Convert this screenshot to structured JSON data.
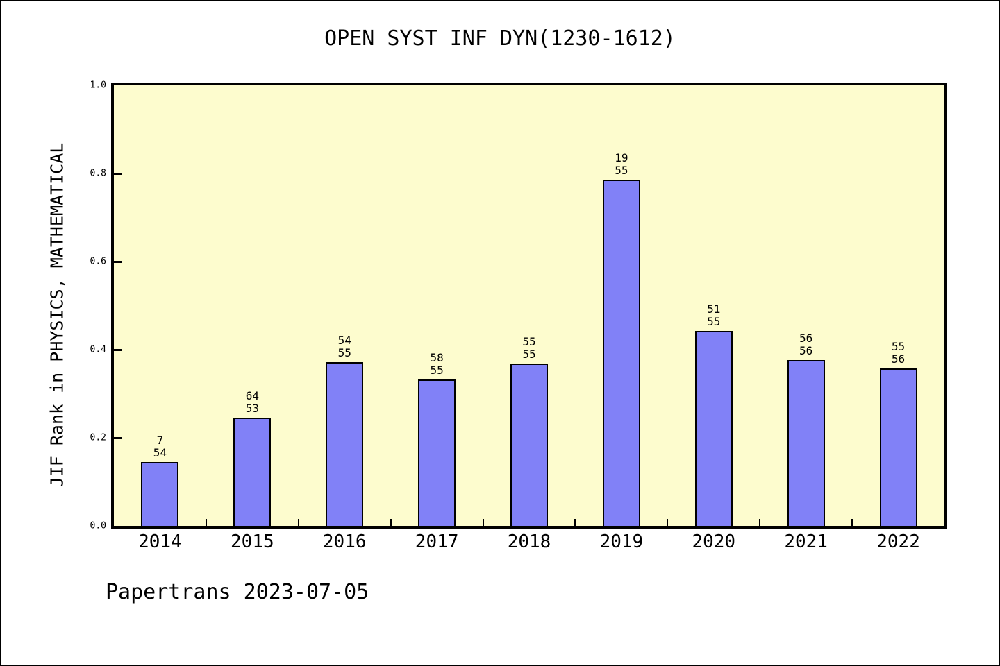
{
  "header": {
    "title": "OPEN SYST INF DYN(1230-1612)"
  },
  "footer": {
    "text": "Papertrans 2023-07-05"
  },
  "chart_data": {
    "type": "bar",
    "title": "OPEN SYST INF DYN(1230-1612)",
    "xlabel": "",
    "ylabel": "JIF Rank in PHYSICS, MATHEMATICAL",
    "ylim": [
      0.0,
      1.0
    ],
    "grid": false,
    "legend": "none",
    "ytick_labels": [
      "0.0",
      "0.2",
      "0.4",
      "0.6",
      "0.8",
      "1.0"
    ],
    "categories": [
      "2014",
      "2015",
      "2016",
      "2017",
      "2018",
      "2019",
      "2020",
      "2021",
      "2022"
    ],
    "values": [
      0.145,
      0.246,
      0.371,
      0.332,
      0.368,
      0.786,
      0.442,
      0.376,
      0.358
    ],
    "bar_labels": [
      [
        "7",
        "54"
      ],
      [
        "64",
        "53"
      ],
      [
        "54",
        "55"
      ],
      [
        "58",
        "55"
      ],
      [
        "55",
        "55"
      ],
      [
        "19",
        "55"
      ],
      [
        "51",
        "55"
      ],
      [
        "56",
        "56"
      ],
      [
        "55",
        "56"
      ]
    ],
    "colors": {
      "plot_background": "#FDFCCE",
      "bar_fill": "#8181F7",
      "bar_border": "#000000",
      "axis": "#000000",
      "text": "#000000"
    }
  }
}
